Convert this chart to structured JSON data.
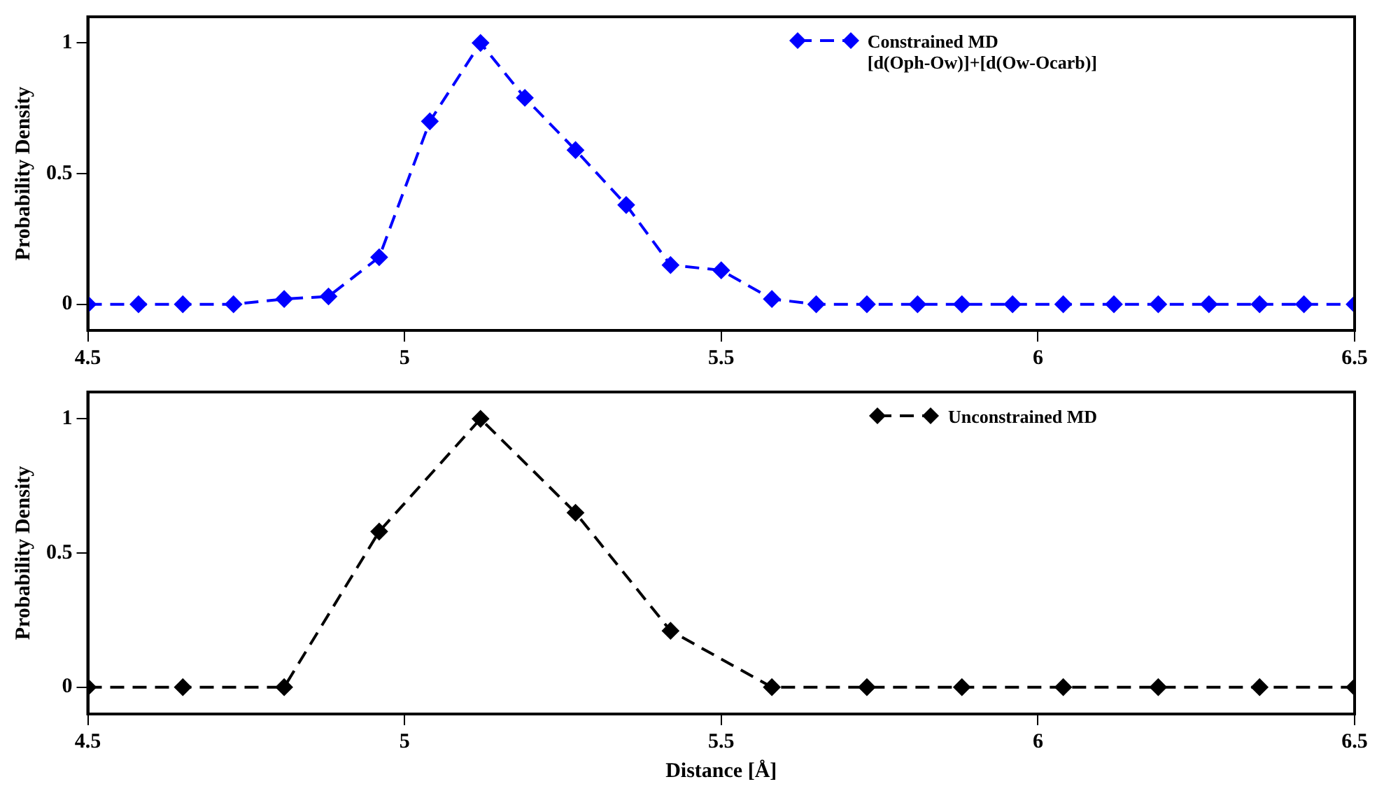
{
  "chart_data": [
    {
      "type": "line",
      "ylabel": "Probability Density",
      "xlim": [
        4.5,
        6.5
      ],
      "xticks": [
        4.5,
        5,
        5.5,
        6,
        6.5
      ],
      "ylim": [
        -0.1,
        1.1
      ],
      "yticks": [
        0,
        0.5,
        1
      ],
      "grid": false,
      "legend": "top right",
      "marker": "diamond",
      "line_style": "dashed",
      "x": [
        4.5,
        4.58,
        4.65,
        4.73,
        4.81,
        4.88,
        4.96,
        5.04,
        5.12,
        5.19,
        5.27,
        5.35,
        5.42,
        5.5,
        5.58,
        5.65,
        5.73,
        5.81,
        5.88,
        5.96,
        6.04,
        6.12,
        6.19,
        6.27,
        6.35,
        6.42,
        6.5
      ],
      "series": [
        {
          "name": "Constrained MD\n[d(Oph-Ow)]+[d(Ow-Ocarb)]",
          "color": "#0000ff",
          "values": [
            0,
            0,
            0,
            0,
            0.02,
            0.03,
            0.18,
            0.7,
            1,
            0.79,
            0.59,
            0.38,
            0.15,
            0.13,
            0.02,
            0,
            0,
            0,
            0,
            0,
            0,
            0,
            0,
            0,
            0,
            0,
            0
          ]
        }
      ]
    },
    {
      "type": "line",
      "xlabel": "Distance [Å]",
      "ylabel": "Probability Density",
      "xlim": [
        4.5,
        6.5
      ],
      "xticks": [
        4.5,
        5,
        5.5,
        6,
        6.5
      ],
      "ylim": [
        -0.1,
        1.1
      ],
      "yticks": [
        0,
        0.5,
        1
      ],
      "grid": false,
      "legend": "top right",
      "marker": "diamond",
      "line_style": "dashed",
      "x": [
        4.5,
        4.65,
        4.81,
        4.96,
        5.12,
        5.27,
        5.42,
        5.58,
        5.73,
        5.88,
        6.04,
        6.19,
        6.35,
        6.5
      ],
      "series": [
        {
          "name": "Unconstrained MD",
          "color": "#000000",
          "values": [
            0,
            0,
            0,
            0.58,
            1,
            0.65,
            0.21,
            0,
            0,
            0,
            0,
            0,
            0,
            0
          ]
        }
      ]
    }
  ]
}
